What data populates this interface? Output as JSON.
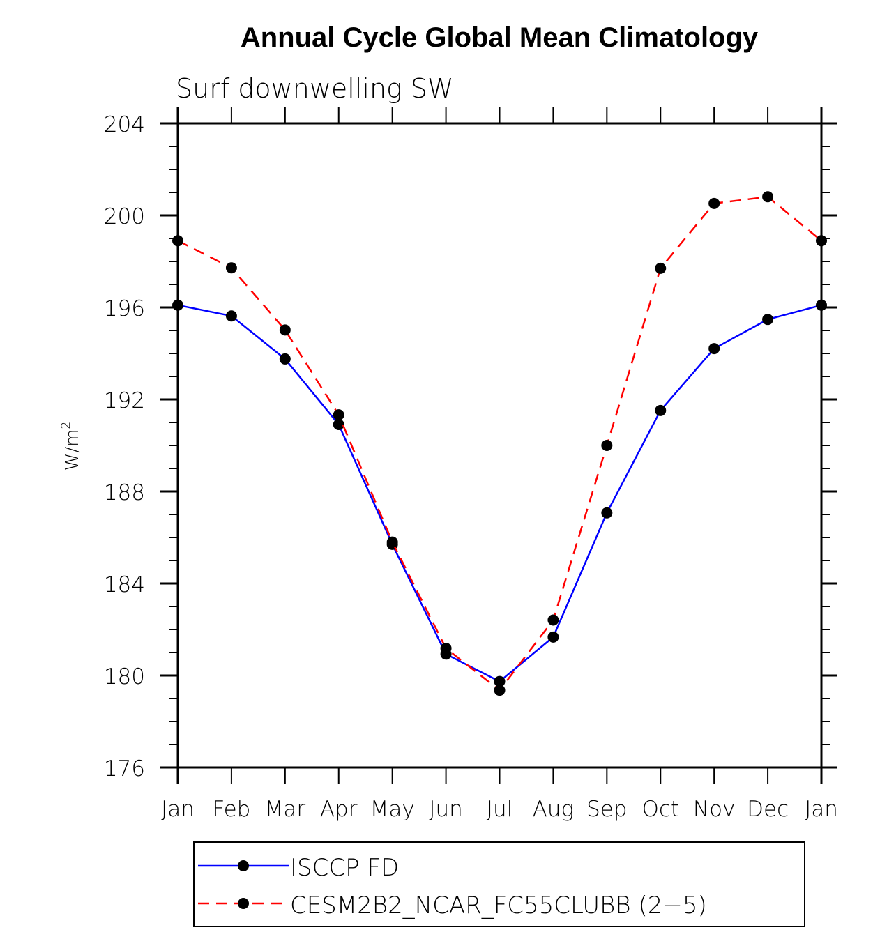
{
  "chart_data": {
    "type": "line",
    "title": "Annual Cycle Global Mean Climatology",
    "subtitle": "Surf downwelling SW",
    "xlabel": "",
    "ylabel": "W/m",
    "ylabel_superscript": "2",
    "categories": [
      "Jan",
      "Feb",
      "Mar",
      "Apr",
      "May",
      "Jun",
      "Jul",
      "Aug",
      "Sep",
      "Oct",
      "Nov",
      "Dec",
      "Jan"
    ],
    "ylim": [
      176,
      204
    ],
    "yticks": [
      176,
      180,
      184,
      188,
      192,
      196,
      200,
      204
    ],
    "yminor_step": 1,
    "grid": false,
    "legend_position": "bottom",
    "series": [
      {
        "name": "ISCCP FD",
        "color": "#0000ff",
        "dash": "solid",
        "marker": "filled-circle",
        "values": [
          196.1,
          195.63,
          193.76,
          190.91,
          185.7,
          180.93,
          179.74,
          181.67,
          187.07,
          191.52,
          194.21,
          195.48,
          196.1
        ]
      },
      {
        "name": "CESM2B2_NCAR_FC55CLUBB (2-5)",
        "color": "#ff0000",
        "dash": "dashed",
        "marker": "filled-circle",
        "values": [
          198.9,
          197.72,
          195.02,
          191.33,
          185.8,
          181.18,
          179.36,
          182.41,
          190.0,
          197.7,
          200.52,
          200.81,
          198.9
        ]
      }
    ]
  }
}
